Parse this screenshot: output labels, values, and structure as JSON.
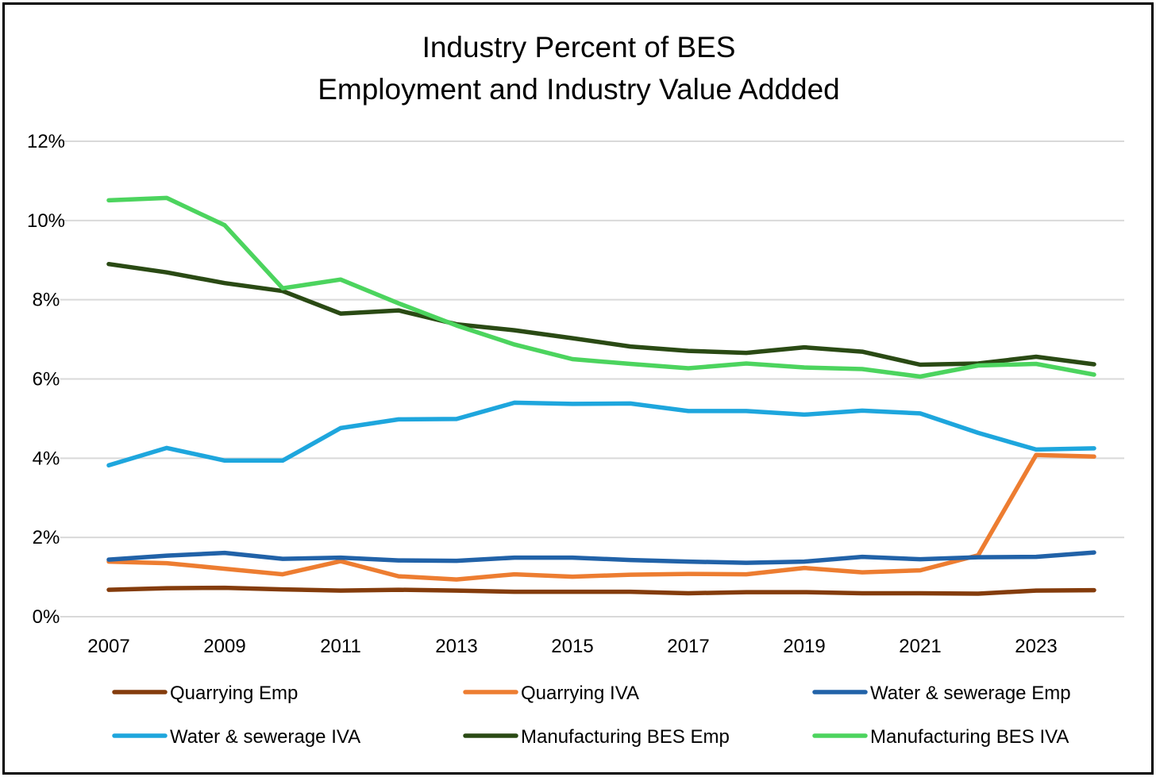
{
  "chart_data": {
    "type": "line",
    "title": [
      "Industry Percent of BES",
      "Employment and Industry Value Addded"
    ],
    "xlabel": "",
    "ylabel": "",
    "x": [
      2007,
      2008,
      2009,
      2010,
      2011,
      2012,
      2013,
      2014,
      2015,
      2016,
      2017,
      2018,
      2019,
      2020,
      2021,
      2022,
      2023,
      2024
    ],
    "x_tick_labels": [
      "2007",
      "2009",
      "2011",
      "2013",
      "2015",
      "2017",
      "2019",
      "2021",
      "2023"
    ],
    "y_tick_labels": [
      "0%",
      "2%",
      "4%",
      "6%",
      "8%",
      "10%",
      "12%"
    ],
    "ylim": [
      0,
      12
    ],
    "y_unit": "%",
    "grid": "horizontal",
    "legend_position": "bottom",
    "series": [
      {
        "name": "Quarrying Emp",
        "color": "#843C0C",
        "values": [
          0.68,
          0.72,
          0.73,
          0.69,
          0.66,
          0.68,
          0.66,
          0.63,
          0.63,
          0.63,
          0.59,
          0.62,
          0.62,
          0.59,
          0.59,
          0.58,
          0.66,
          0.67
        ]
      },
      {
        "name": "Quarrying IVA",
        "color": "#ED7D31",
        "values": [
          1.39,
          1.35,
          1.21,
          1.07,
          1.4,
          1.02,
          0.94,
          1.07,
          1.01,
          1.06,
          1.08,
          1.07,
          1.23,
          1.12,
          1.17,
          1.55,
          4.08,
          4.04
        ]
      },
      {
        "name": "Water & sewerage Emp",
        "color": "#2162A8",
        "values": [
          1.44,
          1.54,
          1.61,
          1.46,
          1.49,
          1.42,
          1.41,
          1.49,
          1.49,
          1.43,
          1.39,
          1.36,
          1.39,
          1.51,
          1.45,
          1.5,
          1.51,
          1.62
        ]
      },
      {
        "name": "Water & sewerage IVA",
        "color": "#1EA6DD",
        "values": [
          3.82,
          4.26,
          3.94,
          3.94,
          4.76,
          4.98,
          4.99,
          5.4,
          5.37,
          5.38,
          5.19,
          5.19,
          5.1,
          5.2,
          5.13,
          4.64,
          4.22,
          4.25
        ]
      },
      {
        "name": "Manufacturing BES Emp",
        "color": "#2A4A14",
        "values": [
          8.9,
          8.69,
          8.42,
          8.22,
          7.65,
          7.73,
          7.38,
          7.23,
          7.03,
          6.82,
          6.71,
          6.66,
          6.8,
          6.69,
          6.36,
          6.39,
          6.56,
          6.37
        ]
      },
      {
        "name": "Manufacturing BES IVA",
        "color": "#4CD45E",
        "values": [
          10.51,
          10.57,
          9.88,
          8.29,
          8.51,
          7.91,
          7.35,
          6.87,
          6.5,
          6.38,
          6.27,
          6.39,
          6.29,
          6.25,
          6.06,
          6.34,
          6.38,
          6.11
        ]
      }
    ]
  }
}
